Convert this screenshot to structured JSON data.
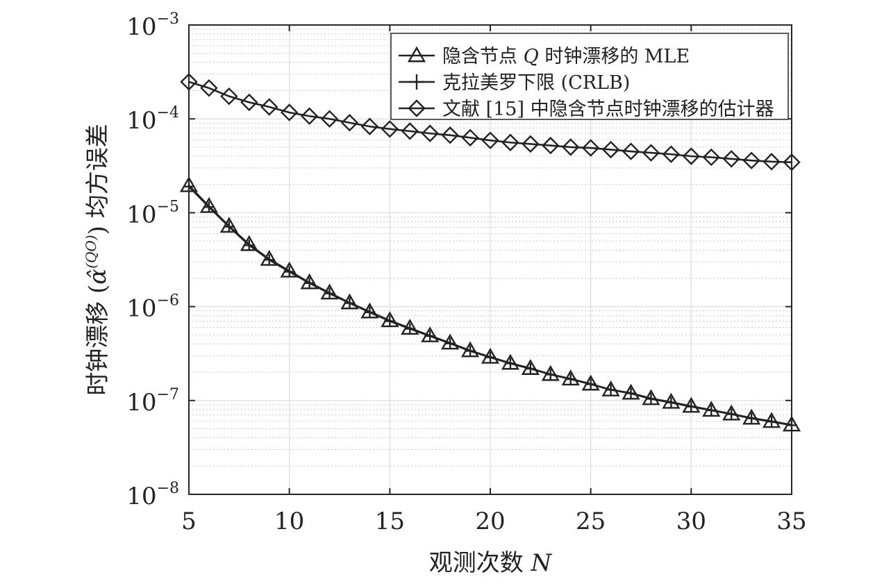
{
  "chart_data": {
    "type": "line",
    "xlabel": "观测次数 N",
    "ylabel": "时钟漂移 (α̂⁽ᵠᴼ⁾) 均方误差",
    "ylabel_parts": {
      "pre": "时钟漂移 (",
      "sym": "α̂",
      "sup": "(QO)",
      "post": ") 均方误差"
    },
    "xlabel_parts": {
      "pre": "观测次数 ",
      "var": "N"
    },
    "xscale": "linear",
    "yscale": "log",
    "xlim": [
      5,
      35
    ],
    "ylim": [
      1e-08,
      0.001
    ],
    "grid": true,
    "legend_position": "top-right",
    "x_ticks": [
      5,
      10,
      15,
      20,
      25,
      30,
      35
    ],
    "x_tick_labels": [
      "5",
      "10",
      "15",
      "20",
      "25",
      "30",
      "35"
    ],
    "y_ticks": [
      1e-08,
      1e-07,
      1e-06,
      1e-05,
      0.0001,
      0.001
    ],
    "y_tick_labels": [
      {
        "base": "10",
        "exp": "−8"
      },
      {
        "base": "10",
        "exp": "−7"
      },
      {
        "base": "10",
        "exp": "−6"
      },
      {
        "base": "10",
        "exp": "−5"
      },
      {
        "base": "10",
        "exp": "−4"
      },
      {
        "base": "10",
        "exp": "−3"
      }
    ],
    "x": [
      5,
      6,
      7,
      8,
      9,
      10,
      11,
      12,
      13,
      14,
      15,
      16,
      17,
      18,
      19,
      20,
      21,
      22,
      23,
      24,
      25,
      26,
      27,
      28,
      29,
      30,
      31,
      32,
      33,
      34,
      35
    ],
    "series": [
      {
        "name": "隐含节点 Q 时钟漂移的 MLE",
        "legend_parts": {
          "pre": "隐含节点 ",
          "var": "Q",
          "post": " 时钟漂移的 MLE"
        },
        "marker": "triangle",
        "color": "#222222",
        "values": [
          1.95e-05,
          1.17e-05,
          7.2e-06,
          4.6e-06,
          3.2e-06,
          2.4e-06,
          1.8e-06,
          1.4e-06,
          1.1e-06,
          8.8e-07,
          7.1e-07,
          5.9e-07,
          4.9e-07,
          4.1e-07,
          3.4e-07,
          2.9e-07,
          2.5e-07,
          2.2e-07,
          1.9e-07,
          1.7e-07,
          1.5e-07,
          1.3e-07,
          1.2e-07,
          1.05e-07,
          9.6e-08,
          8.7e-08,
          7.9e-08,
          7.2e-08,
          6.5e-08,
          6e-08,
          5.5e-08
        ]
      },
      {
        "name": "克拉美罗下限 (CRLB)",
        "legend_parts": {
          "pre": "克拉美罗下限 (CRLB)",
          "var": "",
          "post": ""
        },
        "marker": "plus",
        "color": "#222222",
        "values": [
          1.9e-05,
          1.15e-05,
          7.1e-06,
          4.5e-06,
          3.15e-06,
          2.35e-06,
          1.78e-06,
          1.38e-06,
          1.09e-06,
          8.7e-07,
          7e-07,
          5.8e-07,
          4.85e-07,
          4.05e-07,
          3.37e-07,
          2.88e-07,
          2.48e-07,
          2.18e-07,
          1.89e-07,
          1.69e-07,
          1.49e-07,
          1.3e-07,
          1.19e-07,
          1.04e-07,
          9.5e-08,
          8.6e-08,
          7.85e-08,
          7.15e-08,
          6.45e-08,
          5.95e-08,
          5.45e-08
        ]
      },
      {
        "name": "文献 [15] 中隐含节点时钟漂移的估计器",
        "legend_parts": {
          "pre": "文献 [15] 中隐含节点时钟漂移的估计器",
          "var": "",
          "post": ""
        },
        "marker": "diamond",
        "color": "#222222",
        "values": [
          0.000248,
          0.000213,
          0.000174,
          0.00015,
          0.000134,
          0.000117,
          0.000107,
          0.0001,
          9.1e-05,
          8.3e-05,
          7.8e-05,
          7.4e-05,
          7e-05,
          6.7e-05,
          6.3e-05,
          5.9e-05,
          5.6e-05,
          5.4e-05,
          5.2e-05,
          5e-05,
          4.9e-05,
          4.7e-05,
          4.5e-05,
          4.35e-05,
          4.2e-05,
          4e-05,
          3.9e-05,
          3.75e-05,
          3.6e-05,
          3.5e-05,
          3.45e-05
        ]
      }
    ]
  }
}
